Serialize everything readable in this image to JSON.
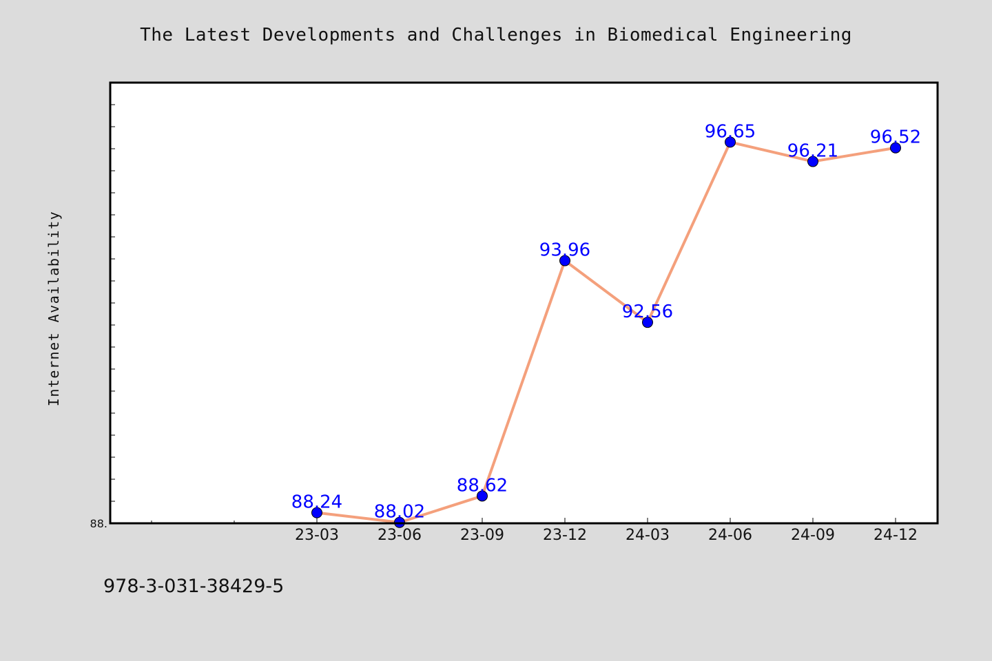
{
  "title": "The Latest Developments and Challenges in Biomedical Engineering",
  "footer_code": "978-3-031-38429-5",
  "chart_data": {
    "type": "line",
    "title": "The Latest Developments and Challenges in Biomedical Engineering",
    "xlabel": "",
    "ylabel": "Internet Availability",
    "categories": [
      "23-03",
      "23-06",
      "23-09",
      "23-12",
      "24-03",
      "24-06",
      "24-09",
      "24-12"
    ],
    "series": [
      {
        "values": [
          88.24,
          88.02,
          88.62,
          93.96,
          92.56,
          96.65,
          96.21,
          96.52
        ],
        "line_color": "#f4a07c",
        "marker_color": "#0000ff"
      }
    ],
    "data_labels": [
      "88.24",
      "88.02",
      "88.62",
      "93.96",
      "92.56",
      "96.65",
      "96.21",
      "96.52"
    ],
    "y_min_label": "88.",
    "ylim": [
      88.0,
      98.0
    ],
    "grid": false,
    "legend": "none"
  }
}
